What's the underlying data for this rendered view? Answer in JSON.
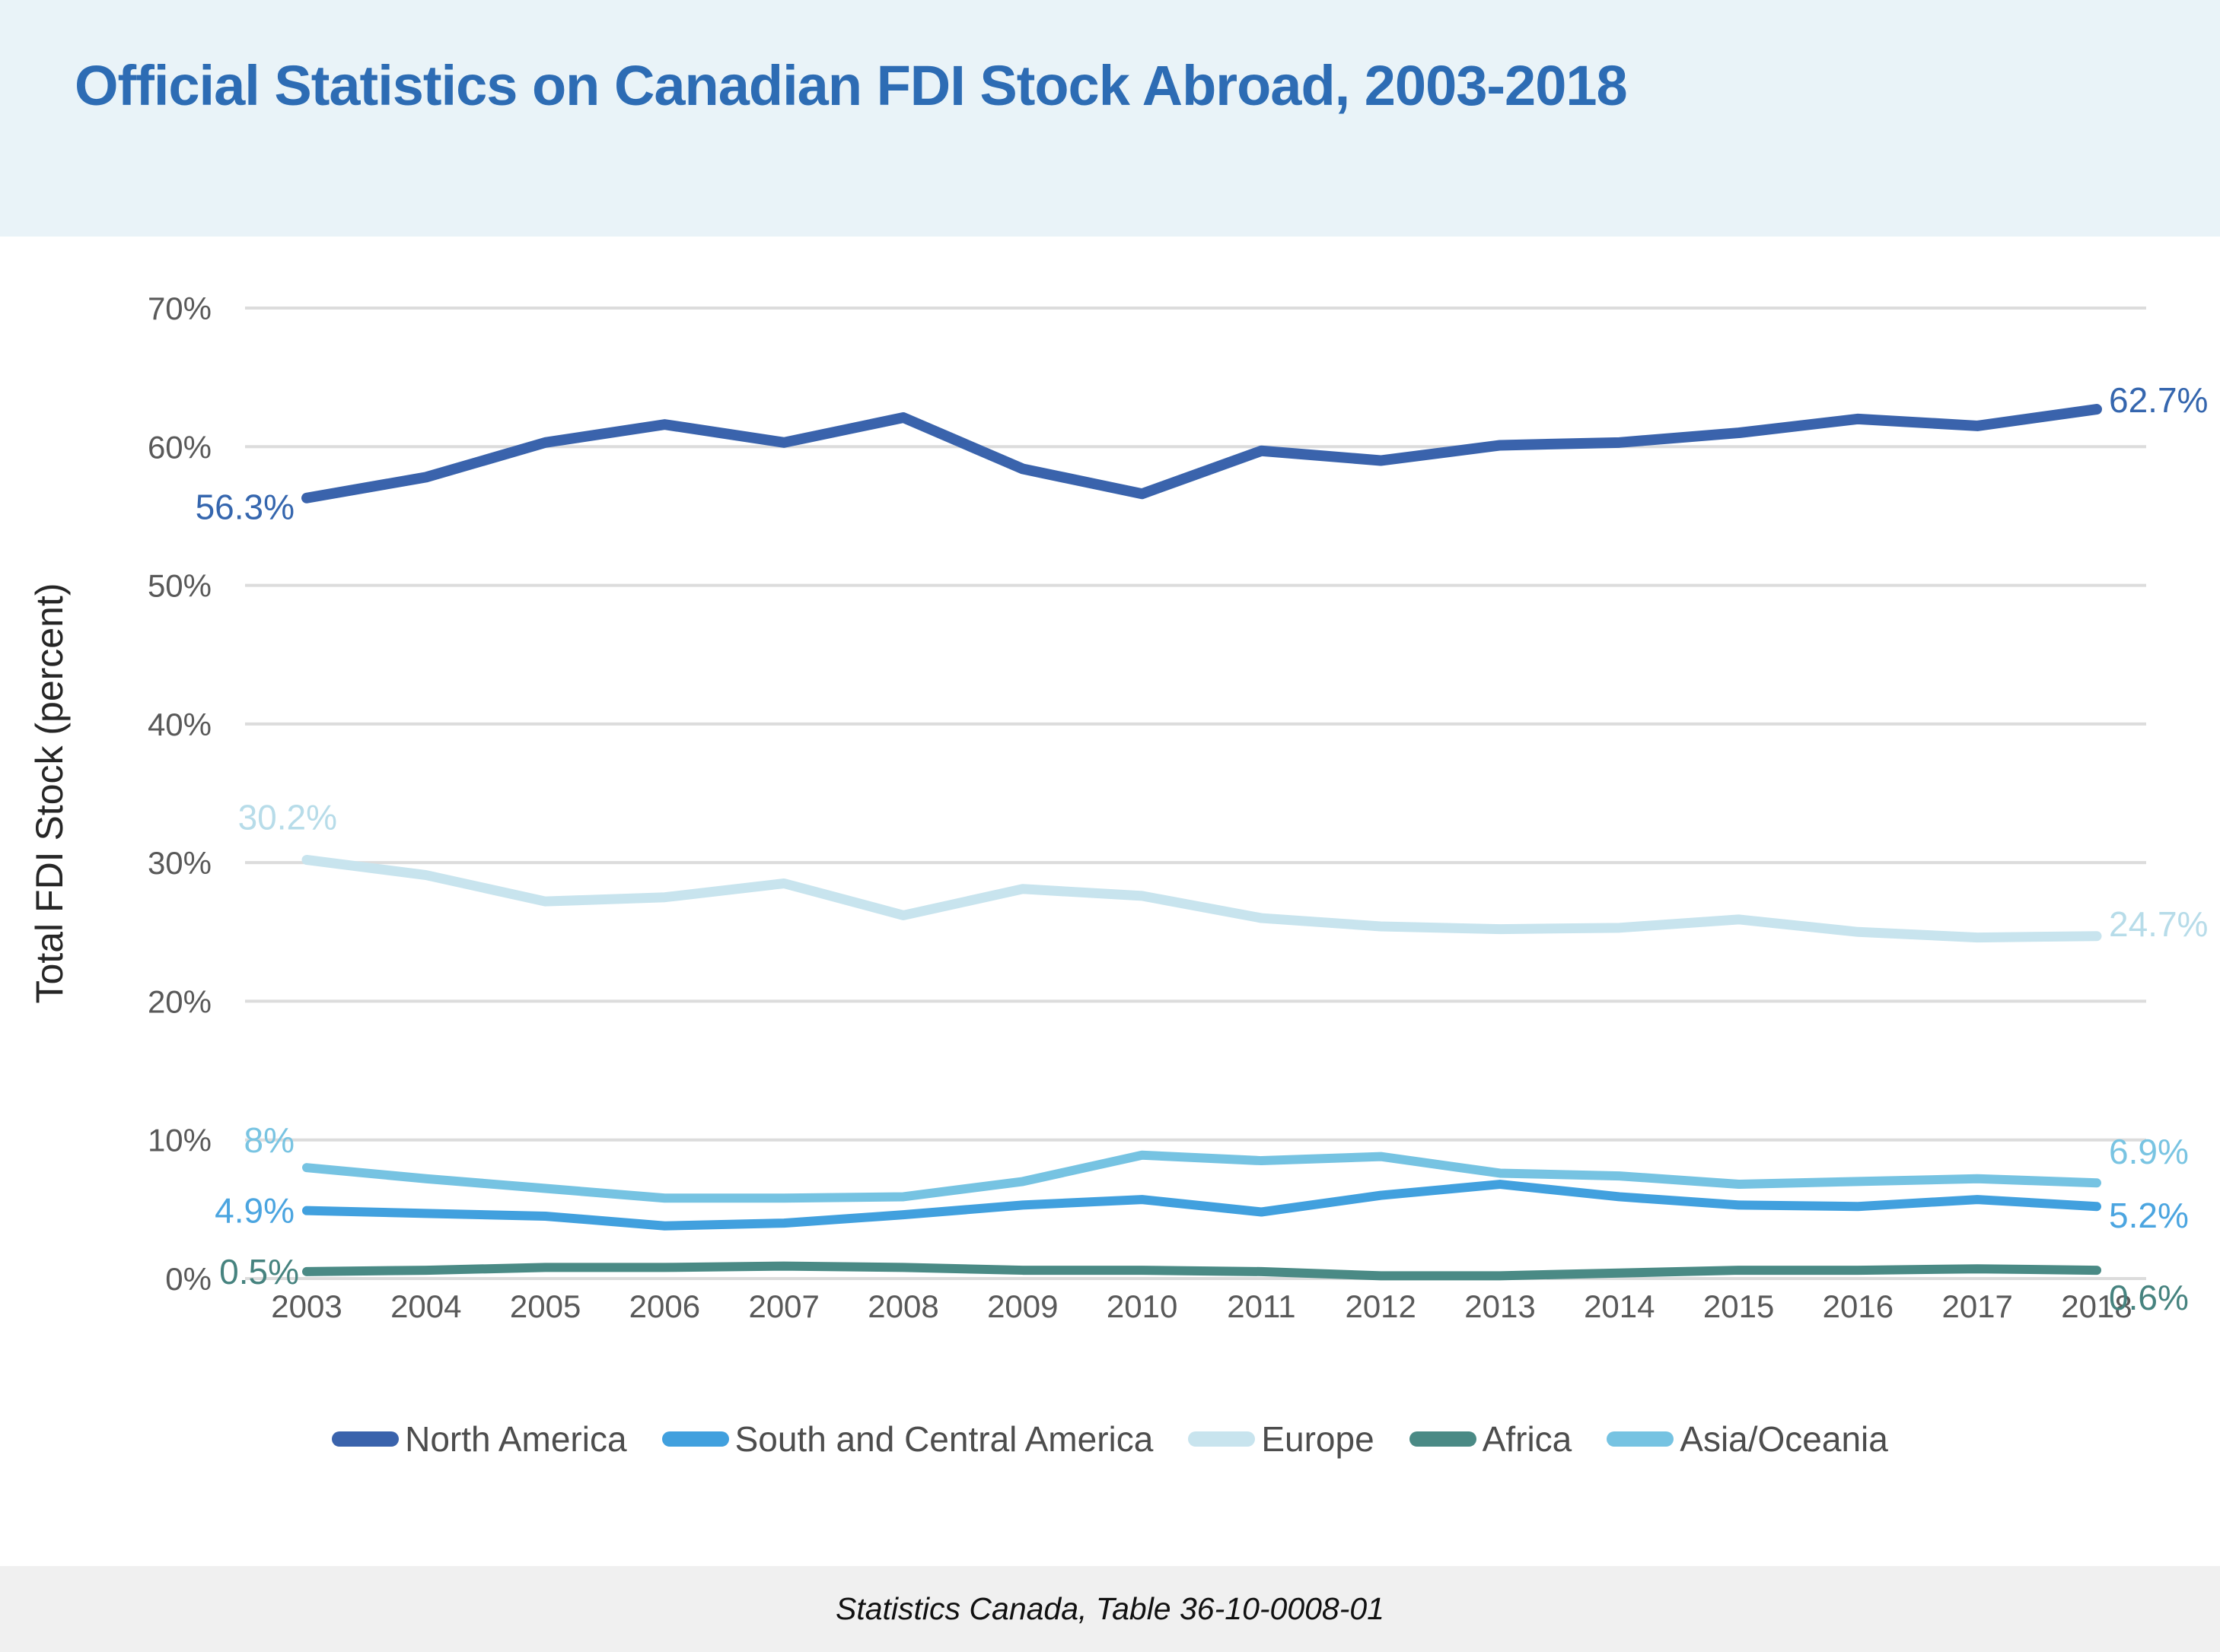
{
  "header": {
    "title": "Official Statistics on Canadian FDI Stock Abroad, 2003-2018"
  },
  "footer": {
    "source": "Statistics Canada, Table 36-10-0008-01"
  },
  "chart_data": {
    "type": "line",
    "title": "Official Statistics on Canadian FDI Stock Abroad, 2003-2018",
    "xlabel": "",
    "ylabel": "Total FDI Stock (percent)",
    "ylim": [
      0,
      70
    ],
    "grid": true,
    "legend_position": "bottom",
    "x": [
      2003,
      2004,
      2005,
      2006,
      2007,
      2008,
      2009,
      2010,
      2011,
      2012,
      2013,
      2014,
      2015,
      2016,
      2017,
      2018
    ],
    "y_tick_labels": [
      "0%",
      "10%",
      "20%",
      "30%",
      "40%",
      "50%",
      "60%",
      "70%"
    ],
    "series": [
      {
        "name": "North America",
        "color": "#3a63ac",
        "label_color": "#3566ae",
        "start_label": "56.3%",
        "end_label": "62.7%",
        "values": [
          56.3,
          57.8,
          60.3,
          61.6,
          60.3,
          62.1,
          58.4,
          56.6,
          59.7,
          59.0,
          60.1,
          60.3,
          61.0,
          62.0,
          61.5,
          62.7
        ]
      },
      {
        "name": "South and Central America",
        "color": "#41a0de",
        "label_color": "#4ba5e0",
        "start_label": "4.9%",
        "end_label": "5.2%",
        "values": [
          4.9,
          4.7,
          4.5,
          3.8,
          4.0,
          4.6,
          5.3,
          5.7,
          4.8,
          6.0,
          6.8,
          5.9,
          5.3,
          5.2,
          5.7,
          5.2
        ]
      },
      {
        "name": "Europe",
        "color": "#c8e4ee",
        "label_color": "#b7dce9",
        "start_label": "30.2%",
        "end_label": "24.7%",
        "values": [
          30.2,
          29.1,
          27.2,
          27.5,
          28.5,
          26.2,
          28.1,
          27.6,
          26.0,
          25.4,
          25.2,
          25.3,
          25.9,
          25.0,
          24.6,
          24.7
        ]
      },
      {
        "name": "Africa",
        "color": "#4a8a85",
        "label_color": "#46837f",
        "start_label": "0.5%",
        "end_label": "0.6%",
        "values": [
          0.5,
          0.6,
          0.8,
          0.8,
          0.9,
          0.8,
          0.6,
          0.6,
          0.5,
          0.2,
          0.2,
          0.4,
          0.6,
          0.6,
          0.7,
          0.6
        ]
      },
      {
        "name": "Asia/Oceania",
        "color": "#76c3e2",
        "label_color": "#79c4e2",
        "start_label": "8%",
        "end_label": "6.9%",
        "values": [
          8.0,
          7.2,
          6.5,
          5.8,
          5.8,
          5.9,
          7.0,
          8.9,
          8.5,
          8.8,
          7.6,
          7.4,
          6.8,
          7.0,
          7.2,
          6.9
        ]
      }
    ]
  }
}
